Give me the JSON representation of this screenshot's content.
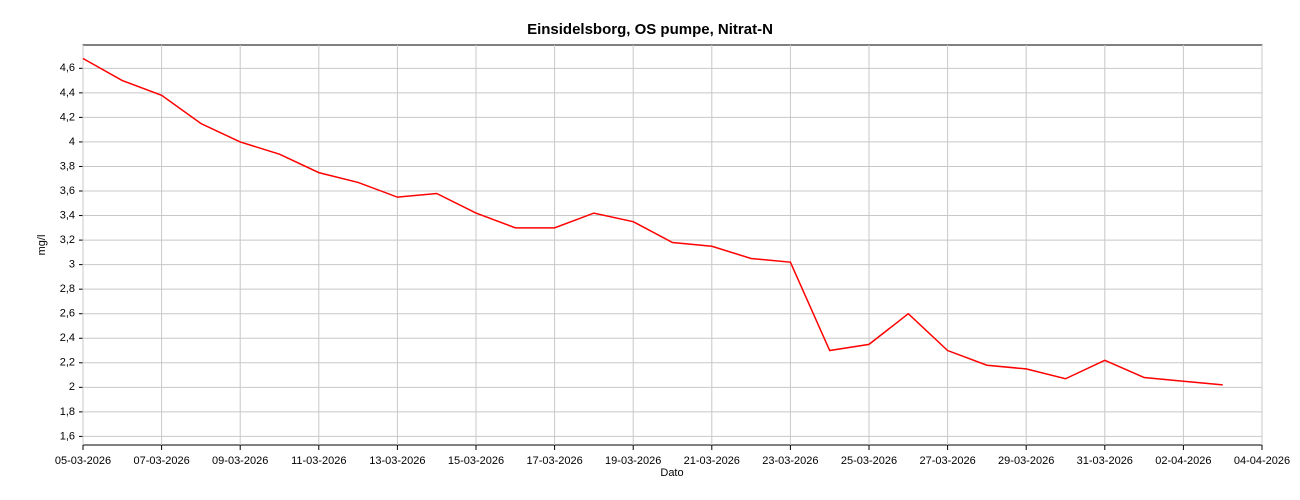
{
  "chart_data": {
    "type": "line",
    "title": "Einsidelsborg, OS pumpe, Nitrat-N",
    "x_label": "Dato",
    "y_label": "mg/l",
    "x": [
      "05-03-2026",
      "06-03-2026",
      "07-03-2026",
      "08-03-2026",
      "09-03-2026",
      "10-03-2026",
      "11-03-2026",
      "12-03-2026",
      "13-03-2026",
      "14-03-2026",
      "15-03-2026",
      "16-03-2026",
      "17-03-2026",
      "18-03-2026",
      "19-03-2026",
      "20-03-2026",
      "21-03-2026",
      "22-03-2026",
      "23-03-2026",
      "24-03-2026",
      "25-03-2026",
      "26-03-2026",
      "27-03-2026",
      "28-03-2026",
      "29-03-2026",
      "30-03-2026",
      "31-03-2026",
      "01-04-2026",
      "02-04-2026",
      "03-04-2026"
    ],
    "series": [
      {
        "name": "Nitrat-N",
        "color": "#ff0000",
        "values": [
          4.68,
          4.5,
          4.38,
          4.15,
          4.0,
          3.9,
          3.75,
          3.67,
          3.55,
          3.58,
          3.42,
          3.3,
          3.3,
          3.42,
          3.35,
          3.18,
          3.15,
          3.05,
          3.02,
          2.3,
          2.35,
          2.6,
          2.3,
          2.18,
          2.15,
          2.07,
          2.22,
          2.08,
          2.05,
          2.02
        ]
      }
    ],
    "xlim": [
      "05-03-2026",
      "04-04-2026"
    ],
    "xticks": [
      "05-03-2026",
      "07-03-2026",
      "09-03-2026",
      "11-03-2026",
      "13-03-2026",
      "15-03-2026",
      "17-03-2026",
      "19-03-2026",
      "21-03-2026",
      "23-03-2026",
      "25-03-2026",
      "27-03-2026",
      "29-03-2026",
      "31-03-2026",
      "02-04-2026",
      "04-04-2026"
    ],
    "ylim": [
      1.53,
      4.79
    ],
    "yticks": [
      {
        "value": 1.6,
        "label": "1,6"
      },
      {
        "value": 1.8,
        "label": "1,8"
      },
      2,
      {
        "value": 2.2,
        "label": "2,2"
      },
      {
        "value": 2.4,
        "label": "2,4"
      },
      {
        "value": 2.6,
        "label": "2,6"
      },
      {
        "value": 2.8,
        "label": "2,8"
      },
      3,
      {
        "value": 3.2,
        "label": "3,2"
      },
      {
        "value": 3.4,
        "label": "3,4"
      },
      {
        "value": 3.6,
        "label": "3,6"
      },
      {
        "value": 3.8,
        "label": "3,8"
      },
      4,
      {
        "value": 4.2,
        "label": "4,2"
      },
      {
        "value": 4.4,
        "label": "4,4"
      },
      {
        "value": 4.6,
        "label": "4,6"
      }
    ],
    "grid": true
  }
}
